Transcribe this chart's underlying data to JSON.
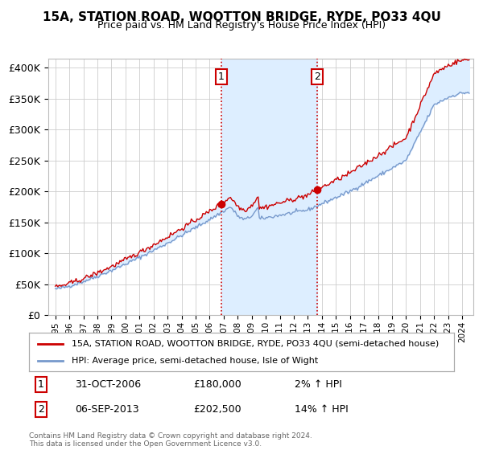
{
  "title": "15A, STATION ROAD, WOOTTON BRIDGE, RYDE, PO33 4QU",
  "subtitle": "Price paid vs. HM Land Registry's House Price Index (HPI)",
  "legend_label1": "15A, STATION ROAD, WOOTTON BRIDGE, RYDE, PO33 4QU (semi-detached house)",
  "legend_label2": "HPI: Average price, semi-detached house, Isle of Wight",
  "annotation1_label": "1",
  "annotation1_date": "31-OCT-2006",
  "annotation1_price": "£180,000",
  "annotation1_hpi": "2% ↑ HPI",
  "annotation1_year": 2006.83,
  "annotation1_value": 180000,
  "annotation2_label": "2",
  "annotation2_date": "06-SEP-2013",
  "annotation2_price": "£202,500",
  "annotation2_hpi": "14% ↑ HPI",
  "annotation2_year": 2013.67,
  "annotation2_value": 202500,
  "footer": "Contains HM Land Registry data © Crown copyright and database right 2024.\nThis data is licensed under the Open Government Licence v3.0.",
  "line1_color": "#cc0000",
  "line2_color": "#7799cc",
  "shade_color": "#ddeeff",
  "vline_color": "#cc0000",
  "yticks": [
    0,
    50000,
    100000,
    150000,
    200000,
    250000,
    300000,
    350000,
    400000
  ],
  "ylabels": [
    "£0",
    "£50K",
    "£100K",
    "£150K",
    "£200K",
    "£250K",
    "£300K",
    "£350K",
    "£400K"
  ],
  "ylim": [
    0,
    415000
  ],
  "xlim_start": 1994.5,
  "xlim_end": 2024.8
}
